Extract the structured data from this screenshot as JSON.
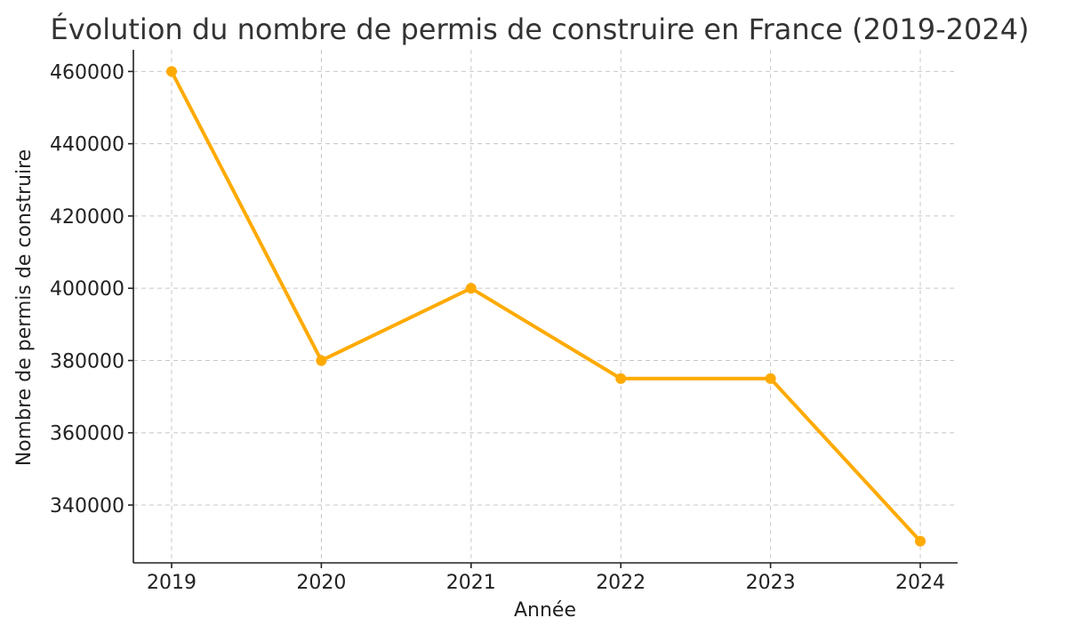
{
  "chart_data": {
    "type": "line",
    "title": "Évolution du nombre de permis de construire en France (2019-2024)",
    "xlabel": "Année",
    "ylabel": "Nombre de permis de construire",
    "x": [
      "2019",
      "2020",
      "2021",
      "2022",
      "2023",
      "2024"
    ],
    "series": [
      {
        "values": [
          460000,
          380000,
          400000,
          375000,
          375000,
          330000
        ],
        "color": "#FFAA00"
      }
    ],
    "yticks": [
      340000,
      360000,
      380000,
      400000,
      420000,
      440000,
      460000
    ],
    "ylim": [
      324000,
      466000
    ],
    "grid": true,
    "marker": "circle"
  }
}
